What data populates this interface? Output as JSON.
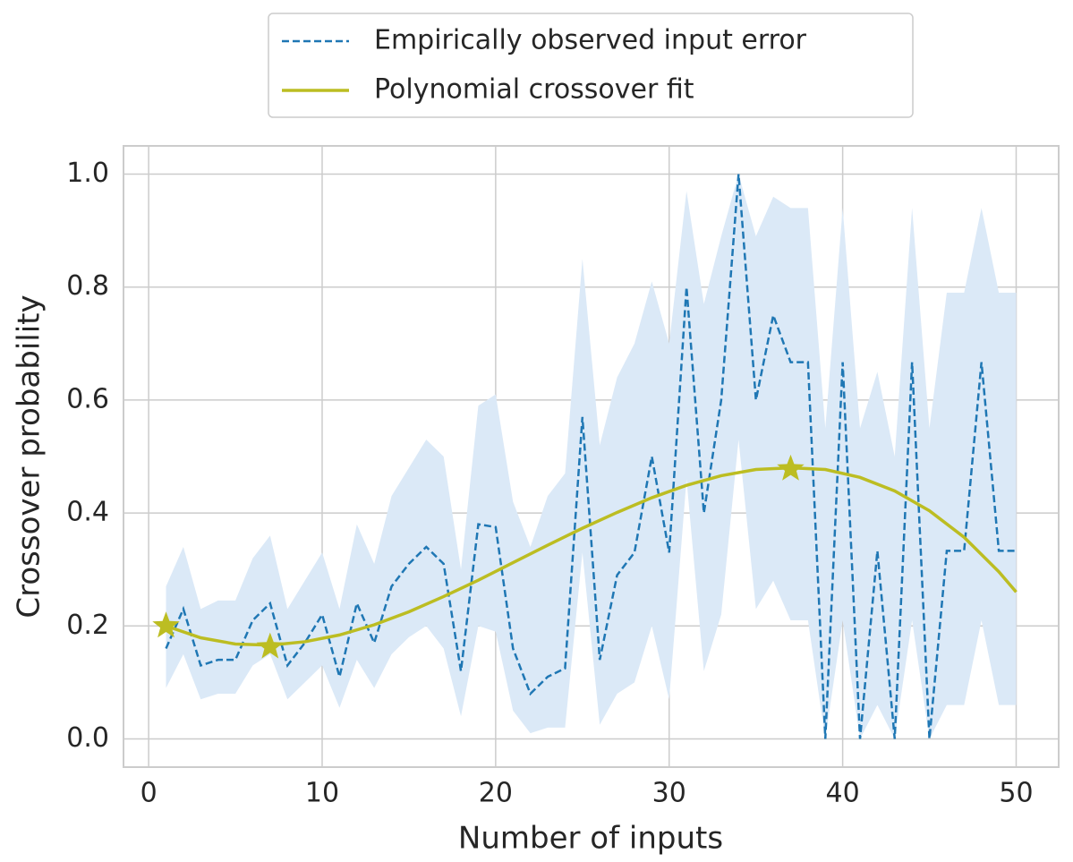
{
  "chart_data": {
    "type": "line",
    "xlabel": "Number of inputs",
    "ylabel": "Crossover probability",
    "xlim": [
      -1.45,
      52.45
    ],
    "ylim": [
      -0.05,
      1.05
    ],
    "xticks": [
      0,
      10,
      20,
      30,
      40,
      50
    ],
    "yticks": [
      {
        "value": 0,
        "label": "0.0"
      },
      0.2,
      0.4,
      0.6,
      0.8,
      {
        "value": 1,
        "label": "1.0"
      }
    ],
    "grid": true,
    "legend": "upper center outside",
    "series": [
      {
        "name": "Empirically observed input error",
        "color": "#1f77b4",
        "style": "dashed",
        "band_color": "#dbe9f7",
        "x": [
          1,
          2,
          3,
          4,
          5,
          6,
          7,
          8,
          9,
          10,
          11,
          12,
          13,
          14,
          15,
          16,
          17,
          18,
          19,
          20,
          21,
          22,
          23,
          24,
          25,
          26,
          27,
          28,
          29,
          30,
          31,
          32,
          33,
          34,
          35,
          36,
          37,
          38,
          39,
          40,
          41,
          42,
          43,
          44,
          45,
          46,
          47,
          48,
          49,
          50
        ],
        "values": [
          0.16,
          0.23,
          0.13,
          0.14,
          0.14,
          0.21,
          0.24,
          0.13,
          0.17,
          0.22,
          0.11,
          0.24,
          0.17,
          0.27,
          0.31,
          0.34,
          0.31,
          0.12,
          0.38,
          0.375,
          0.16,
          0.08,
          0.11,
          0.125,
          0.57,
          0.14,
          0.29,
          0.33,
          0.5,
          0.33,
          0.8,
          0.4,
          0.6,
          1.0,
          0.6,
          0.75,
          0.667,
          0.667,
          0,
          0.667,
          0,
          0.333,
          0,
          0.667,
          0,
          0.333,
          0.333,
          0.667,
          0.333,
          0.333
        ],
        "upper": [
          0.27,
          0.34,
          0.23,
          0.245,
          0.245,
          0.32,
          0.36,
          0.23,
          0.28,
          0.33,
          0.23,
          0.38,
          0.31,
          0.43,
          0.48,
          0.53,
          0.5,
          0.3,
          0.59,
          0.61,
          0.42,
          0.34,
          0.43,
          0.47,
          0.85,
          0.52,
          0.64,
          0.7,
          0.81,
          0.7,
          0.97,
          0.77,
          0.89,
          1.0,
          0.89,
          0.96,
          0.94,
          0.94,
          0.55,
          0.94,
          0.55,
          0.65,
          0.5,
          0.94,
          0.55,
          0.79,
          0.79,
          0.94,
          0.79,
          0.79
        ],
        "lower": [
          0.09,
          0.15,
          0.07,
          0.08,
          0.08,
          0.13,
          0.15,
          0.07,
          0.1,
          0.13,
          0.055,
          0.14,
          0.09,
          0.15,
          0.18,
          0.2,
          0.16,
          0.04,
          0.2,
          0.19,
          0.05,
          0.01,
          0.02,
          0.02,
          0.33,
          0.025,
          0.08,
          0.1,
          0.2,
          0.07,
          0.46,
          0.12,
          0.22,
          0.53,
          0.23,
          0.28,
          0.21,
          0.21,
          0,
          0.21,
          0,
          0.06,
          0,
          0.21,
          0,
          0.06,
          0.06,
          0.21,
          0.06,
          0.06
        ]
      },
      {
        "name": "Polynomial crossover fit",
        "color": "#bcbd22",
        "style": "solid",
        "x": [
          1,
          3,
          5,
          7,
          9,
          11,
          13,
          15,
          17,
          19,
          21,
          23,
          25,
          27,
          29,
          31,
          33,
          35,
          37,
          39,
          41,
          43,
          45,
          47,
          49,
          50
        ],
        "values": [
          0.2,
          0.179,
          0.168,
          0.166,
          0.172,
          0.184,
          0.202,
          0.225,
          0.252,
          0.281,
          0.312,
          0.343,
          0.373,
          0.401,
          0.427,
          0.449,
          0.466,
          0.477,
          0.48,
          0.477,
          0.463,
          0.439,
          0.404,
          0.357,
          0.296,
          0.26
        ],
        "marker_x": [
          1,
          7,
          37
        ],
        "marker_values": [
          0.2,
          0.163,
          0.478
        ]
      }
    ]
  }
}
